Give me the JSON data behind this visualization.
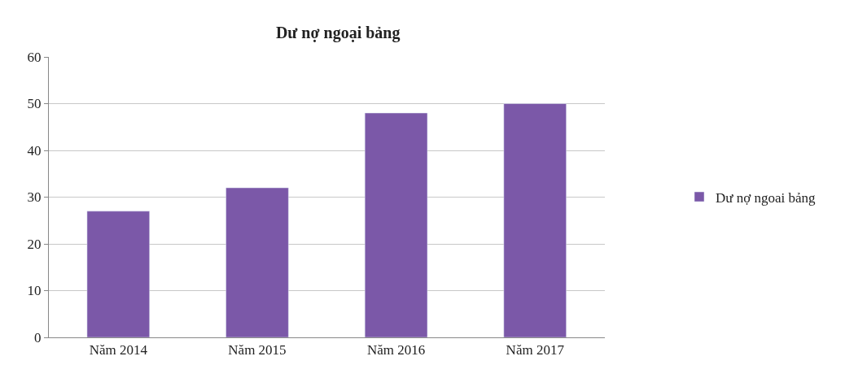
{
  "chart_data": {
    "type": "bar",
    "title": "Dư nợ ngoại bảng",
    "categories": [
      "Năm 2014",
      "Năm 2015",
      "Năm 2016",
      "Năm 2017"
    ],
    "series": [
      {
        "name": "Dư nợ ngoai bảng",
        "color": "#7b58a8",
        "values": [
          27,
          32,
          48,
          50
        ]
      }
    ],
    "ylim": [
      0,
      60
    ],
    "yticks": [
      0,
      10,
      20,
      30,
      40,
      50,
      60
    ],
    "grid": "y",
    "legend": "right"
  }
}
